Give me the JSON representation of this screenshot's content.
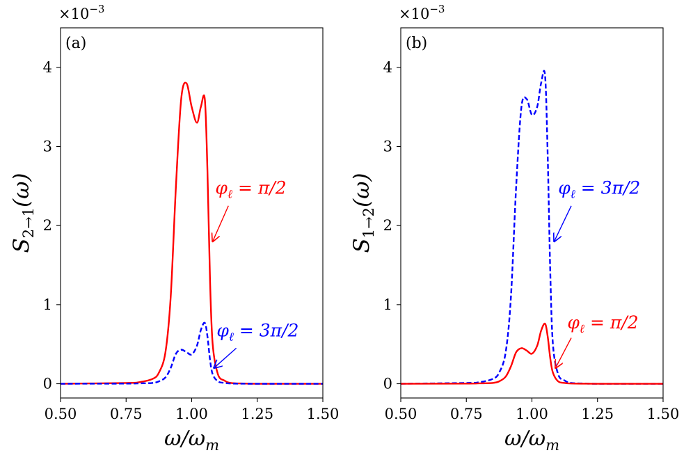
{
  "chart_data": [
    {
      "panel": "(a)",
      "type": "line",
      "xlim": [
        0.5,
        1.5
      ],
      "ylim": [
        -0.00018,
        0.0045
      ],
      "xticks": [
        "0.50",
        "0.75",
        "1.00",
        "1.25",
        "1.50"
      ],
      "xtick_values": [
        0.5,
        0.75,
        1.0,
        1.25,
        1.5
      ],
      "yticks": [
        "0",
        "1",
        "2",
        "3",
        "4"
      ],
      "ytick_values": [
        0,
        0.001,
        0.002,
        0.003,
        0.004
      ],
      "offset_label_base": "×10",
      "offset_label_exp": "−3",
      "xlabel_main": "ω/ω",
      "xlabel_sub": "m",
      "ylabel_main": "S",
      "ylabel_sub": "2→1",
      "ylabel_tail": "(ω)",
      "series": [
        {
          "name": "φℓ = π/2",
          "color": "#ff0000",
          "dash": "solid",
          "x": [
            0.5,
            0.75,
            0.8,
            0.85,
            0.875,
            0.9,
            0.92,
            0.94,
            0.96,
            0.98,
            1.0,
            1.02,
            1.035,
            1.05,
            1.06,
            1.07,
            1.08,
            1.1,
            1.125,
            1.15,
            1.2,
            1.25,
            1.5
          ],
          "y": [
            0,
            1e-05,
            2e-05,
            6e-05,
            0.00014,
            0.0004,
            0.0011,
            0.0025,
            0.0036,
            0.0038,
            0.0035,
            0.0033,
            0.0035,
            0.0036,
            0.0027,
            0.0013,
            0.0005,
            0.00012,
            4e-05,
            1e-05,
            3e-06,
            0,
            0
          ]
        },
        {
          "name": "φℓ = 3π/2",
          "color": "#0000ff",
          "dash": "dashed",
          "x": [
            0.5,
            0.75,
            0.8,
            0.85,
            0.875,
            0.9,
            0.92,
            0.94,
            0.96,
            0.98,
            1.0,
            1.02,
            1.035,
            1.05,
            1.06,
            1.07,
            1.08,
            1.1,
            1.125,
            1.15,
            1.2,
            1.25,
            1.5
          ],
          "y": [
            0,
            2e-06,
            5e-06,
            1e-05,
            3e-05,
            8e-05,
            0.0002,
            0.00038,
            0.00043,
            0.0004,
            0.00037,
            0.00048,
            0.00068,
            0.00077,
            0.0006,
            0.0003,
            0.00012,
            3e-05,
            1e-05,
            3e-06,
            1e-06,
            0,
            0
          ]
        }
      ],
      "annotations": [
        {
          "text_main": "φ",
          "text_sub": "ℓ",
          "text_rest": " = π/2",
          "color": "#ff0000",
          "target": [
            1.08,
            0.0018
          ]
        },
        {
          "text_main": "φ",
          "text_sub": "ℓ",
          "text_rest": " = 3π/2",
          "color": "#0000ff",
          "target": [
            1.085,
            0.0002
          ]
        }
      ]
    },
    {
      "panel": "(b)",
      "type": "line",
      "xlim": [
        0.5,
        1.5
      ],
      "ylim": [
        -0.00018,
        0.0045
      ],
      "xticks": [
        "0.50",
        "0.75",
        "1.00",
        "1.25",
        "1.50"
      ],
      "xtick_values": [
        0.5,
        0.75,
        1.0,
        1.25,
        1.5
      ],
      "yticks": [
        "0",
        "1",
        "2",
        "3",
        "4"
      ],
      "ytick_values": [
        0,
        0.001,
        0.002,
        0.003,
        0.004
      ],
      "offset_label_base": "×10",
      "offset_label_exp": "−3",
      "xlabel_main": "ω/ω",
      "xlabel_sub": "m",
      "ylabel_main": "S",
      "ylabel_sub": "1→2",
      "ylabel_tail": "(ω)",
      "series": [
        {
          "name": "φℓ = 3π/2",
          "color": "#0000ff",
          "dash": "dashed",
          "x": [
            0.5,
            0.75,
            0.8,
            0.85,
            0.875,
            0.9,
            0.92,
            0.94,
            0.96,
            0.98,
            1.0,
            1.02,
            1.035,
            1.05,
            1.06,
            1.07,
            1.08,
            1.1,
            1.125,
            1.15,
            1.2,
            1.25,
            1.5
          ],
          "y": [
            0,
            1e-05,
            2e-05,
            6e-05,
            0.00014,
            0.0004,
            0.0011,
            0.0025,
            0.0035,
            0.0036,
            0.0034,
            0.0035,
            0.0038,
            0.0039,
            0.0029,
            0.0014,
            0.0005,
            0.00012,
            4e-05,
            1e-05,
            3e-06,
            0,
            0
          ]
        },
        {
          "name": "φℓ = π/2",
          "color": "#ff0000",
          "dash": "solid",
          "x": [
            0.5,
            0.75,
            0.8,
            0.85,
            0.875,
            0.9,
            0.92,
            0.94,
            0.96,
            0.98,
            1.0,
            1.02,
            1.035,
            1.05,
            1.06,
            1.07,
            1.08,
            1.1,
            1.125,
            1.15,
            1.2,
            1.25,
            1.5
          ],
          "y": [
            0,
            2e-06,
            5e-06,
            1e-05,
            3e-05,
            9e-05,
            0.00022,
            0.0004,
            0.00045,
            0.00042,
            0.00038,
            0.00048,
            0.00067,
            0.00076,
            0.0006,
            0.00032,
            0.00014,
            3e-05,
            1e-05,
            3e-06,
            1e-06,
            0,
            0
          ]
        }
      ],
      "annotations": [
        {
          "text_main": "φ",
          "text_sub": "ℓ",
          "text_rest": " = 3π/2",
          "color": "#0000ff",
          "target": [
            1.085,
            0.0018
          ]
        },
        {
          "text_main": "φ",
          "text_sub": "ℓ",
          "text_rest": " = π/2",
          "color": "#ff0000",
          "target": [
            1.09,
            0.0002
          ]
        }
      ]
    }
  ]
}
